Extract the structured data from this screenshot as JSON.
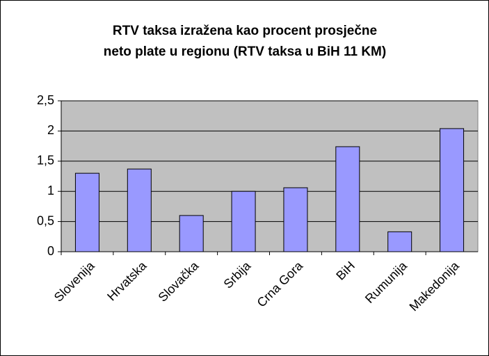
{
  "chart_data": {
    "type": "bar",
    "title": [
      "RTV taksa izražena kao procent prosječne",
      "neto plate u regionu (RTV taksa u BiH 11 KM)"
    ],
    "categories": [
      "Slovenija",
      "Hrvatska",
      "Slovačka",
      "Srbija",
      "Crna Gora",
      "BiH",
      "Rumunija",
      "Makedonija"
    ],
    "values": [
      1.3,
      1.37,
      0.6,
      1.0,
      1.06,
      1.74,
      0.33,
      2.04
    ],
    "color": "#9999ff",
    "ylim": [
      0,
      2.5
    ],
    "yticks": [
      0,
      {
        "value": 0.5,
        "label": "0,5"
      },
      1,
      {
        "value": 1.5,
        "label": "1,5"
      },
      2,
      {
        "value": 2.5,
        "label": "2,5"
      }
    ],
    "grid": true
  }
}
